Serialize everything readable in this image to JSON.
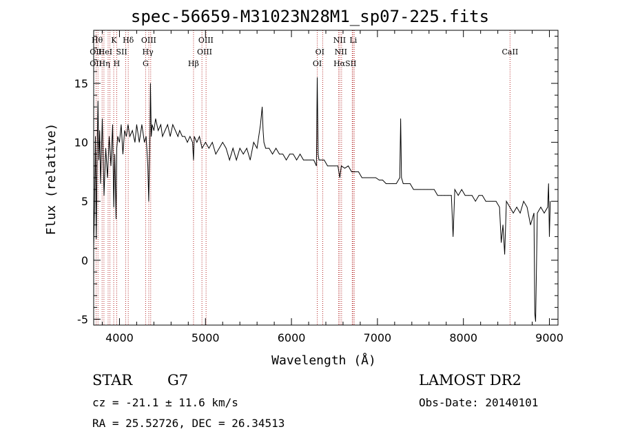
{
  "chart_data": {
    "type": "line",
    "title": "spec-56659-M31023N28M1_sp07-225.fits",
    "xlabel": "Wavelength (Å)",
    "ylabel": "Flux (relative)",
    "xlim": [
      3700,
      9100
    ],
    "ylim": [
      -5.5,
      19.5
    ],
    "xticks": [
      4000,
      5000,
      6000,
      7000,
      8000,
      9000
    ],
    "yticks": [
      -5,
      0,
      5,
      10,
      15
    ],
    "grid": false,
    "series": [
      {
        "x": [
          3700,
          3710,
          3720,
          3730,
          3740,
          3750,
          3760,
          3770,
          3780,
          3800,
          3820,
          3840,
          3860,
          3880,
          3900,
          3920,
          3933,
          3945,
          3960,
          3968,
          3980,
          4000,
          4020,
          4040,
          4060,
          4080,
          4100,
          4120,
          4150,
          4180,
          4200,
          4230,
          4260,
          4290,
          4310,
          4330,
          4340,
          4355,
          4360,
          4370,
          4380,
          4400,
          4420,
          4450,
          4480,
          4500,
          4530,
          4560,
          4590,
          4620,
          4650,
          4680,
          4700,
          4730,
          4760,
          4790,
          4820,
          4850,
          4861,
          4870,
          4900,
          4930,
          4960,
          5000,
          5040,
          5080,
          5120,
          5160,
          5200,
          5240,
          5280,
          5320,
          5360,
          5400,
          5440,
          5480,
          5520,
          5560,
          5600,
          5640,
          5660,
          5670,
          5680,
          5700,
          5740,
          5780,
          5820,
          5860,
          5900,
          5940,
          5980,
          6020,
          6060,
          6100,
          6140,
          6180,
          6220,
          6260,
          6290,
          6300,
          6310,
          6320,
          6340,
          6380,
          6420,
          6460,
          6500,
          6540,
          6563,
          6580,
          6620,
          6660,
          6700,
          6740,
          6780,
          6820,
          6860,
          6900,
          6940,
          6980,
          7020,
          7060,
          7100,
          7140,
          7180,
          7220,
          7260,
          7270,
          7280,
          7300,
          7340,
          7380,
          7420,
          7460,
          7500,
          7540,
          7580,
          7620,
          7660,
          7700,
          7740,
          7780,
          7820,
          7860,
          7880,
          7900,
          7940,
          7980,
          8020,
          8060,
          8100,
          8140,
          8180,
          8220,
          8260,
          8300,
          8340,
          8380,
          8420,
          8440,
          8460,
          8480,
          8500,
          8540,
          8580,
          8620,
          8660,
          8700,
          8740,
          8780,
          8820,
          8830,
          8840,
          8860,
          8900,
          8940,
          8980,
          8990,
          9000,
          9010
        ],
        "y": [
          1.0,
          4.5,
          10.5,
          1.8,
          9.0,
          13.5,
          8.5,
          11.0,
          6.5,
          12.0,
          5.5,
          9.5,
          7.0,
          10.5,
          8.0,
          11.5,
          4.5,
          9.0,
          3.5,
          9.5,
          10.5,
          10.0,
          11.5,
          9.0,
          11.0,
          10.5,
          11.5,
          10.5,
          11.0,
          10.0,
          11.5,
          10.0,
          11.5,
          10.0,
          10.5,
          8.0,
          5.0,
          11.0,
          15.0,
          10.5,
          11.5,
          11.0,
          12.0,
          11.0,
          11.5,
          10.5,
          11.0,
          11.5,
          10.5,
          11.5,
          11.0,
          10.5,
          11.0,
          10.5,
          10.5,
          10.0,
          10.5,
          10.0,
          8.5,
          10.5,
          10.0,
          10.5,
          9.5,
          10.0,
          9.5,
          10.0,
          9.0,
          9.5,
          10.0,
          9.5,
          8.5,
          9.5,
          8.5,
          9.5,
          9.0,
          9.5,
          8.5,
          10.0,
          9.5,
          11.5,
          13.0,
          11.0,
          10.0,
          9.5,
          9.5,
          9.0,
          9.5,
          9.0,
          9.0,
          8.5,
          9.0,
          9.0,
          8.5,
          9.0,
          8.5,
          8.5,
          8.5,
          8.5,
          8.0,
          15.5,
          9.0,
          8.5,
          8.5,
          8.5,
          8.0,
          8.0,
          8.0,
          8.0,
          7.0,
          8.0,
          7.8,
          8.0,
          7.5,
          7.5,
          7.5,
          7.0,
          7.0,
          7.0,
          7.0,
          7.0,
          6.8,
          6.8,
          6.5,
          6.5,
          6.5,
          6.5,
          7.0,
          12.0,
          7.0,
          6.5,
          6.5,
          6.5,
          6.0,
          6.0,
          6.0,
          6.0,
          6.0,
          6.0,
          6.0,
          5.5,
          5.5,
          5.5,
          5.5,
          5.5,
          2.0,
          6.0,
          5.5,
          6.0,
          5.5,
          5.5,
          5.5,
          5.0,
          5.5,
          5.5,
          5.0,
          5.0,
          5.0,
          5.0,
          4.5,
          1.5,
          3.0,
          0.5,
          5.0,
          4.5,
          4.0,
          4.5,
          4.0,
          5.0,
          4.5,
          3.0,
          4.0,
          -4.5,
          -5.2,
          4.0,
          4.5,
          4.0,
          4.5,
          6.5,
          2.0,
          5.0
        ]
      }
    ],
    "lines": [
      {
        "x": 3728,
        "labels": [
          "OII",
          "OII"
        ]
      },
      {
        "x": 3750,
        "labels": [
          "Hθ"
        ]
      },
      {
        "x": 3798,
        "labels": [
          "Hη"
        ]
      },
      {
        "x": 3819,
        "labels": [
          "HeI"
        ]
      },
      {
        "x": 3868,
        "labels": [
          "Hη"
        ]
      },
      {
        "x": 3889,
        "labels": [
          "SII"
        ]
      },
      {
        "x": 3933,
        "labels": [
          "K"
        ]
      },
      {
        "x": 3968,
        "labels": [
          "H"
        ]
      },
      {
        "x": 4072,
        "labels": [
          "SII"
        ]
      },
      {
        "x": 4102,
        "labels": [
          "Hδ"
        ]
      },
      {
        "x": 4304,
        "labels": [
          "G"
        ]
      },
      {
        "x": 4341,
        "labels": [
          "Hγ"
        ]
      },
      {
        "x": 4363,
        "labels": [
          "OIII",
          "OIII"
        ]
      },
      {
        "x": 4861,
        "labels": [
          "Hβ"
        ]
      },
      {
        "x": 4959,
        "labels": [
          "OIII",
          "OIII"
        ]
      },
      {
        "x": 5007,
        "labels": [
          "OIII"
        ]
      },
      {
        "x": 6300,
        "labels": [
          "OI",
          "OI"
        ]
      },
      {
        "x": 6364,
        "labels": [
          "OI"
        ]
      },
      {
        "x": 6548,
        "labels": [
          "NII"
        ]
      },
      {
        "x": 6563,
        "labels": [
          "Hα"
        ]
      },
      {
        "x": 6583,
        "labels": [
          "NII",
          "NII"
        ]
      },
      {
        "x": 6707,
        "labels": [
          "Li"
        ]
      },
      {
        "x": 6716,
        "labels": [
          "SII"
        ]
      },
      {
        "x": 6731,
        "labels": [
          "SII"
        ]
      },
      {
        "x": 8542,
        "labels": [
          "CaII"
        ]
      }
    ]
  },
  "line_labels": [
    {
      "text": "Hθ",
      "x": 3741,
      "row": 1
    },
    {
      "text": "K",
      "x": 3935,
      "row": 1
    },
    {
      "text": "Hδ",
      "x": 4102,
      "row": 1
    },
    {
      "text": "OIII",
      "x": 4340,
      "row": 1
    },
    {
      "text": "OIII",
      "x": 5005,
      "row": 1
    },
    {
      "text": "NII",
      "x": 6560,
      "row": 1
    },
    {
      "text": "Li",
      "x": 6719,
      "row": 1
    },
    {
      "text": "OII",
      "x": 3725,
      "row": 2
    },
    {
      "text": "HeI",
      "x": 3835,
      "row": 2
    },
    {
      "text": "SII",
      "x": 4025,
      "row": 2
    },
    {
      "text": "Hγ",
      "x": 4330,
      "row": 2
    },
    {
      "text": "OIII",
      "x": 4990,
      "row": 2
    },
    {
      "text": "OI",
      "x": 6330,
      "row": 2
    },
    {
      "text": "NII",
      "x": 6575,
      "row": 2
    },
    {
      "text": "CaII",
      "x": 8542,
      "row": 2
    },
    {
      "text": "OII",
      "x": 3725,
      "row": 3
    },
    {
      "text": "Hη",
      "x": 3825,
      "row": 3
    },
    {
      "text": "H",
      "x": 3968,
      "row": 3
    },
    {
      "text": "G",
      "x": 4304,
      "row": 3
    },
    {
      "text": "Hβ",
      "x": 4861,
      "row": 3
    },
    {
      "text": "OI",
      "x": 6300,
      "row": 3
    },
    {
      "text": "HαSII",
      "x": 6622,
      "row": 3
    }
  ],
  "info": {
    "object_type": "STAR",
    "subclass": "G7",
    "survey": "LAMOST DR2",
    "redshift": "cz = -21.1 ± 11.6 km/s",
    "obs_date": "Obs-Date: 20140101",
    "coords": "RA =  25.52726, DEC =  26.34513"
  },
  "colors": {
    "spectrum": "#000000",
    "line_marker": "#b22222",
    "axes": "#000000",
    "background": "#ffffff"
  }
}
